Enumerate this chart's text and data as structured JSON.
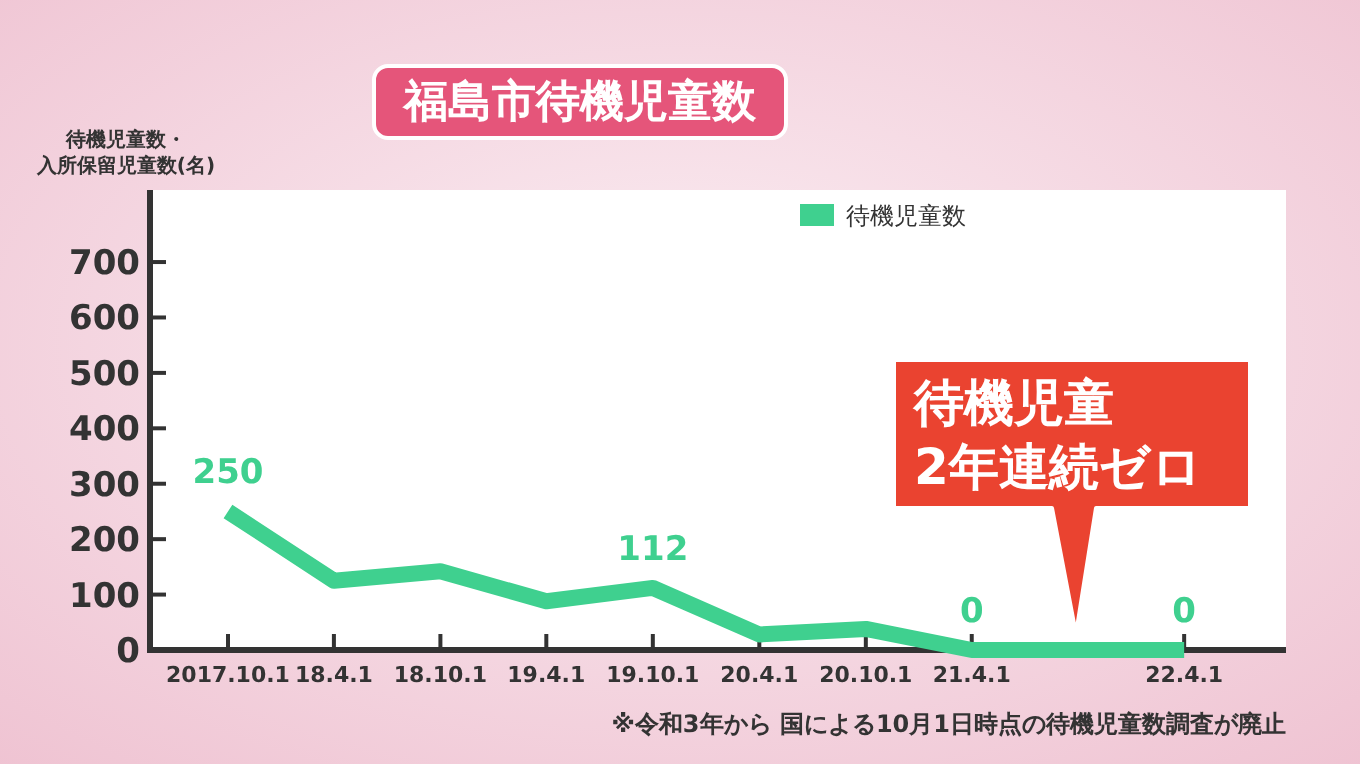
{
  "chart_data": {
    "type": "line",
    "title": "福島市待機児童数",
    "ylabel": "待機児童数・入所保留児童数(名)",
    "x": [
      "2017-10-01",
      "2018-04-01",
      "2018-10-01",
      "2019-04-01",
      "2019-10-01",
      "2020-04-01",
      "2020-10-01",
      "2021-04-01",
      "2022-04-01"
    ],
    "series": [
      {
        "name": "待機児童数",
        "color": "#3fd08f",
        "values": [
          250,
          125,
          142,
          88,
          112,
          28,
          38,
          0,
          0
        ],
        "value_labels": [
          "250",
          null,
          null,
          null,
          "112",
          null,
          null,
          "0",
          "0"
        ]
      }
    ],
    "xlim": [
      "2017-05-20",
      "2022-09-23"
    ],
    "xticks": [
      {
        "value": "2017-10-01",
        "label": "2017.10.1"
      },
      {
        "value": "2018-04-01",
        "label": "18.4.1"
      },
      {
        "value": "2018-10-01",
        "label": "18.10.1"
      },
      {
        "value": "2019-04-01",
        "label": "19.4.1"
      },
      {
        "value": "2019-10-01",
        "label": "19.10.1"
      },
      {
        "value": "2020-04-01",
        "label": "20.4.1"
      },
      {
        "value": "2020-10-01",
        "label": "20.10.1"
      },
      {
        "value": "2021-04-01",
        "label": "21.4.1"
      },
      {
        "value": "2022-04-01",
        "label": "22.4.1"
      }
    ],
    "ylim": [
      0,
      830
    ],
    "yticks": [
      0,
      100,
      200,
      300,
      400,
      500,
      600,
      700
    ],
    "legend": "top",
    "grid": false,
    "marker": "none",
    "line_style": "solid",
    "annotations": [
      "待機児童\n2年連続ゼロ",
      "※令和3年から 国による10月1日時点の待機児童数調査が廃止"
    ]
  }
}
